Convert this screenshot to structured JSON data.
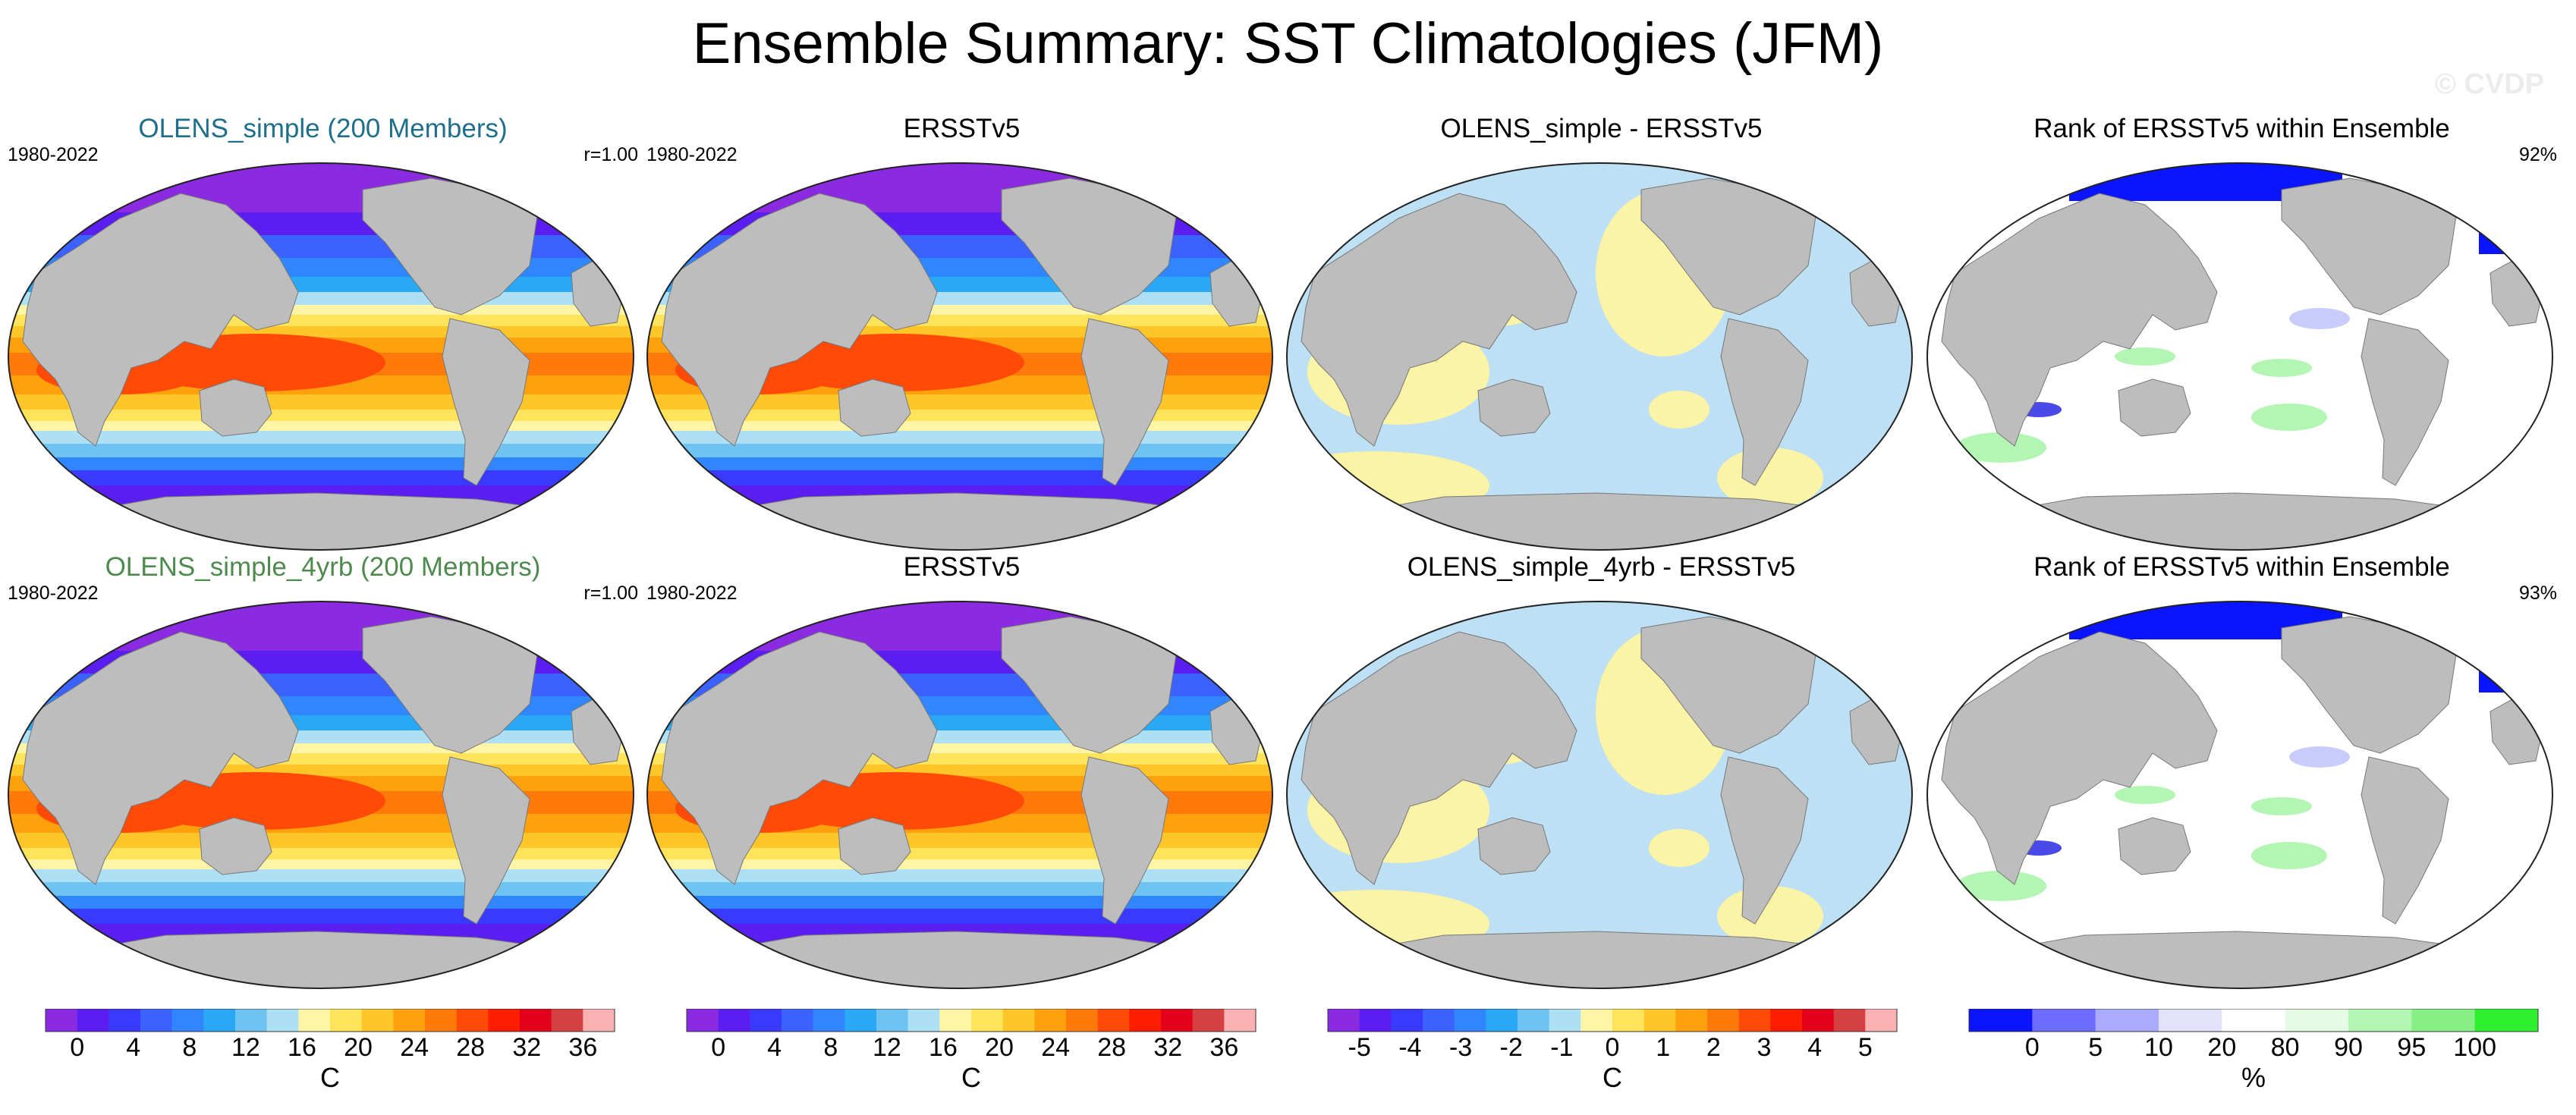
{
  "title": "Ensemble Summary: SST Climatologies (JFM)",
  "watermark": "© CVDP",
  "colors": {
    "land": "#bdbdbd",
    "title_blue": "#1f6e8c",
    "title_green": "#4f8a4f",
    "diff_warm": "#fbf3a6",
    "diff_cool": "#bde0f4",
    "rank_low": "#0a14ff",
    "rank_mid": "#c9ccfb",
    "rank_high": "#b3f5b3"
  },
  "rows": [
    {
      "panels": [
        {
          "title": "OLENS_simple (200 Members)",
          "left": "1980-2022",
          "right": "r=1.00",
          "kind": "sst",
          "title_color": "#1f6e8c"
        },
        {
          "title": "ERSSTv5",
          "left": "1980-2022",
          "right": "",
          "kind": "sst",
          "title_color": "#000000"
        },
        {
          "title": "OLENS_simple - ERSSTv5",
          "left": "",
          "right": "",
          "kind": "diff",
          "title_color": "#000000"
        },
        {
          "title": "Rank of ERSSTv5 within Ensemble",
          "left": "",
          "right": "92%",
          "kind": "rank",
          "title_color": "#000000"
        }
      ]
    },
    {
      "panels": [
        {
          "title": "OLENS_simple_4yrb (200 Members)",
          "left": "1980-2022",
          "right": "r=1.00",
          "kind": "sst",
          "title_color": "#4f8a4f"
        },
        {
          "title": "ERSSTv5",
          "left": "1980-2022",
          "right": "",
          "kind": "sst",
          "title_color": "#000000"
        },
        {
          "title": "OLENS_simple_4yrb - ERSSTv5",
          "left": "",
          "right": "",
          "kind": "diff",
          "title_color": "#000000"
        },
        {
          "title": "Rank of ERSSTv5 within Ensemble",
          "left": "",
          "right": "93%",
          "kind": "rank",
          "title_color": "#000000"
        }
      ]
    }
  ],
  "chart_data": [
    {
      "type": "heatmap",
      "name": "sst_colorbar_1",
      "unit": "C",
      "tick_labels": [
        "0",
        "4",
        "8",
        "12",
        "16",
        "20",
        "24",
        "28",
        "32",
        "36"
      ],
      "colors": [
        "#8a2be2",
        "#5b1ef0",
        "#3a3aff",
        "#3b62ff",
        "#2f86ff",
        "#28a8f5",
        "#6ec3f0",
        "#aee0f5",
        "#fff5a5",
        "#ffe35a",
        "#ffc629",
        "#ffa10d",
        "#ff7a0a",
        "#ff4a08",
        "#ff1d00",
        "#e3001a",
        "#d54040",
        "#f9b1b1"
      ]
    },
    {
      "type": "heatmap",
      "name": "sst_colorbar_2",
      "unit": "C",
      "tick_labels": [
        "0",
        "4",
        "8",
        "12",
        "16",
        "20",
        "24",
        "28",
        "32",
        "36"
      ],
      "colors": [
        "#8a2be2",
        "#5b1ef0",
        "#3a3aff",
        "#3b62ff",
        "#2f86ff",
        "#28a8f5",
        "#6ec3f0",
        "#aee0f5",
        "#fff5a5",
        "#ffe35a",
        "#ffc629",
        "#ffa10d",
        "#ff7a0a",
        "#ff4a08",
        "#ff1d00",
        "#e3001a",
        "#d54040",
        "#f9b1b1"
      ]
    },
    {
      "type": "heatmap",
      "name": "difference_colorbar",
      "unit": "C",
      "tick_labels": [
        "-5",
        "-4",
        "-3",
        "-2",
        "-1",
        "0",
        "1",
        "2",
        "3",
        "4",
        "5"
      ],
      "colors": [
        "#8a2be2",
        "#5b1ef0",
        "#3a3aff",
        "#3b62ff",
        "#2f86ff",
        "#28a8f5",
        "#6ec3f0",
        "#aee0f5",
        "#fff5a5",
        "#ffe35a",
        "#ffc629",
        "#ffa10d",
        "#ff7a0a",
        "#ff4a08",
        "#ff1d00",
        "#e3001a",
        "#d54040",
        "#f9b1b1"
      ]
    },
    {
      "type": "heatmap",
      "name": "rank_colorbar",
      "unit": "%",
      "tick_labels": [
        "0",
        "5",
        "10",
        "20",
        "80",
        "90",
        "95",
        "100"
      ],
      "colors": [
        "#0a14ff",
        "#6c6cff",
        "#aaaaff",
        "#e2e3fb",
        "#ffffff",
        "#e6fbe6",
        "#b3f5b3",
        "#86f086",
        "#2ef02e"
      ]
    }
  ]
}
